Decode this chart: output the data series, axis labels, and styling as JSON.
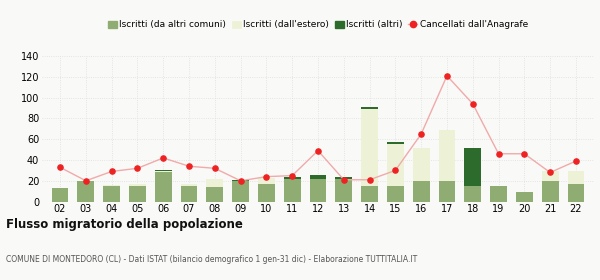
{
  "years": [
    "02",
    "03",
    "04",
    "05",
    "06",
    "07",
    "08",
    "09",
    "10",
    "11",
    "12",
    "13",
    "14",
    "15",
    "16",
    "17",
    "18",
    "19",
    "20",
    "21",
    "22"
  ],
  "iscritti_altri_comuni": [
    13,
    20,
    15,
    15,
    28,
    15,
    14,
    20,
    17,
    22,
    22,
    22,
    15,
    15,
    20,
    20,
    15,
    15,
    9,
    20,
    17
  ],
  "iscritti_estero": [
    0,
    0,
    1,
    2,
    1,
    2,
    8,
    0,
    6,
    0,
    0,
    0,
    74,
    40,
    32,
    49,
    0,
    0,
    0,
    9,
    12
  ],
  "iscritti_altri": [
    0,
    0,
    0,
    0,
    1,
    0,
    0,
    1,
    0,
    2,
    4,
    2,
    2,
    2,
    0,
    0,
    37,
    0,
    0,
    0,
    0
  ],
  "cancellati": [
    33,
    20,
    29,
    32,
    42,
    34,
    32,
    20,
    24,
    25,
    49,
    21,
    21,
    30,
    65,
    121,
    94,
    46,
    46,
    28,
    39
  ],
  "color_altri_comuni": "#8fad72",
  "color_estero": "#edf2d6",
  "color_altri": "#2d6b2d",
  "color_cancellati": "#ee2222",
  "color_line": "#f0aaaa",
  "bg_color": "#f9f9f7",
  "grid_color": "#dddddd",
  "ylim": [
    0,
    140
  ],
  "yticks": [
    0,
    20,
    40,
    60,
    80,
    100,
    120,
    140
  ],
  "title": "Flusso migratorio della popolazione",
  "subtitle": "COMUNE DI MONTEDORO (CL) - Dati ISTAT (bilancio demografico 1 gen-31 dic) - Elaborazione TUTTITALIA.IT",
  "legend_labels": [
    "Iscritti (da altri comuni)",
    "Iscritti (dall'estero)",
    "Iscritti (altri)",
    "Cancellati dall'Anagrafe"
  ]
}
